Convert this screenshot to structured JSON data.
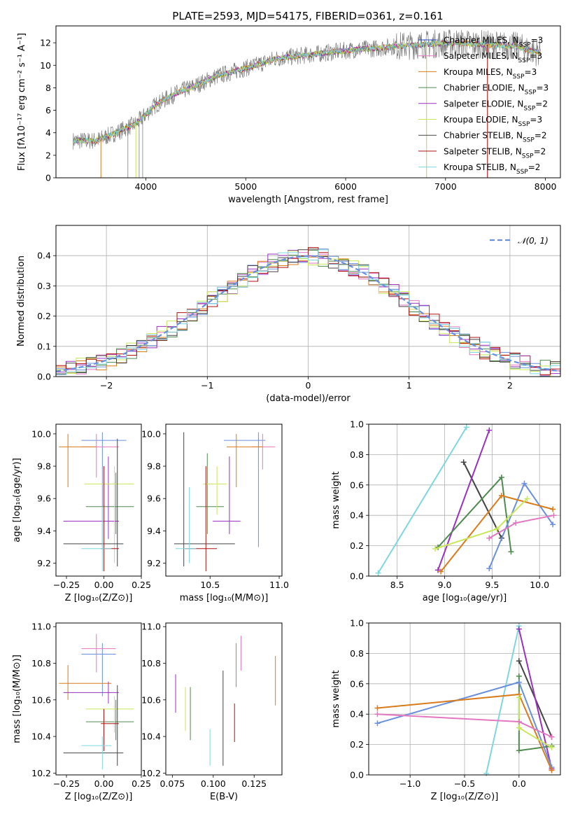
{
  "title": "PLATE=2593, MJD=54175, FIBERID=0361, z=0.161",
  "colors": {
    "Chabrier MILES": "#1f3fbf",
    "Salpeter MILES": "#e377c2",
    "Kroupa MILES": "#d97b1a",
    "Chabrier ELODIE": "#4f8a4f",
    "Salpeter ELODIE": "#9b30c0",
    "Kroupa ELODIE": "#c8e85a",
    "Chabrier STELIB": "#444444",
    "Salpeter STELIB": "#b01010",
    "Kroupa STELIB": "#7fd6e0",
    "blue_models": "#6a8fdc",
    "data_gray": "#808080",
    "grid": "#b0b0b0"
  },
  "chart_data": [
    {
      "id": "spectrum",
      "type": "line",
      "xlabel": "wavelength [Angstrom, rest frame]",
      "ylabel": "Flux [fλ10⁻¹⁷ erg cm⁻² s⁻¹ A⁻¹]",
      "xlim": [
        3100,
        8150
      ],
      "ylim": [
        0,
        13.5
      ],
      "xticks": [
        4000,
        5000,
        6000,
        7000,
        8000
      ],
      "yticks": [
        0,
        2,
        4,
        6,
        8,
        10,
        12
      ],
      "grid": false,
      "legend_position": "upper right",
      "legend": [
        {
          "label": "Chabrier MILES, N",
          "sub": "SSP",
          "suffix": "=3",
          "color": "Chabrier MILES"
        },
        {
          "label": "Salpeter MILES, N",
          "sub": "SSP",
          "suffix": "=3",
          "color": "Salpeter MILES"
        },
        {
          "label": "Kroupa MILES, N",
          "sub": "SSP",
          "suffix": "=3",
          "color": "Kroupa MILES"
        },
        {
          "label": "Chabrier ELODIE, N",
          "sub": "SSP",
          "suffix": "=3",
          "color": "Chabrier ELODIE"
        },
        {
          "label": "Salpeter ELODIE, N",
          "sub": "SSP",
          "suffix": "=2",
          "color": "Salpeter ELODIE"
        },
        {
          "label": "Kroupa ELODIE, N",
          "sub": "SSP",
          "suffix": "=3",
          "color": "Kroupa ELODIE"
        },
        {
          "label": "Chabrier STELIB, N",
          "sub": "SSP",
          "suffix": "=2",
          "color": "Chabrier STELIB"
        },
        {
          "label": "Salpeter STELIB, N",
          "sub": "SSP",
          "suffix": "=2",
          "color": "Salpeter STELIB"
        },
        {
          "label": "Kroupa STELIB, N",
          "sub": "SSP",
          "suffix": "=2",
          "color": "Kroupa STELIB"
        }
      ],
      "continuum": {
        "x": [
          3300,
          3500,
          3700,
          3900,
          4100,
          4300,
          4500,
          4700,
          4900,
          5100,
          5300,
          5500,
          5700,
          5900,
          6100,
          6300,
          6500,
          6700,
          6900,
          7100,
          7300,
          7500,
          7700,
          7900
        ],
        "y": [
          3.3,
          3.3,
          4.0,
          4.8,
          6.5,
          7.5,
          8.2,
          9.0,
          9.5,
          10.0,
          10.6,
          10.8,
          11.0,
          11.2,
          11.4,
          11.5,
          11.7,
          11.8,
          11.9,
          12.0,
          11.9,
          11.8,
          11.7,
          11.2
        ]
      }
    },
    {
      "id": "residuals",
      "type": "histogram",
      "xlabel": "(data-model)/error",
      "ylabel": "Normed distribution",
      "xlim": [
        -2.5,
        2.5
      ],
      "ylim": [
        0,
        0.5
      ],
      "xticks": [
        -2,
        -1,
        0,
        1,
        2
      ],
      "xtick_labels": [
        "−2",
        "−1",
        "0",
        "1",
        "2"
      ],
      "yticks": [
        0.0,
        0.1,
        0.2,
        0.3,
        0.4
      ],
      "grid": true,
      "legend_position": "upper right",
      "legend": [
        {
          "label": "𝒩(0, 1)",
          "color": "blue_models",
          "style": "dashed"
        }
      ],
      "bin_width": 0.1,
      "model": "gaussian mean 0 sigma 1"
    },
    {
      "id": "age_vs_Z",
      "type": "errorbar",
      "xlabel": "Z [log₁₀(Z/Z⊙)]",
      "ylabel": "age  [log₁₀(age/yr)]",
      "xlim": [
        -0.32,
        0.25
      ],
      "ylim": [
        9.12,
        10.06
      ],
      "xticks": [
        -0.25,
        0.0,
        0.25
      ],
      "xtick_labels": [
        "−0.25",
        "0.00",
        "0.25"
      ],
      "yticks": [
        9.2,
        9.4,
        9.6,
        9.8,
        10.0
      ],
      "yticklabels": [
        "9.2",
        "9.4",
        "9.6",
        "9.8",
        "10.0"
      ],
      "points": [
        {
          "c": "blue_models",
          "x": -0.01,
          "xlo": -0.15,
          "xhi": 0.15,
          "y": 9.96,
          "ylo": 9.3,
          "yhi": 10.01
        },
        {
          "c": "Salpeter MILES",
          "x": -0.05,
          "xlo": -0.15,
          "xhi": 0.1,
          "y": 9.92,
          "ylo": 9.73,
          "yhi": 10.0
        },
        {
          "c": "Kroupa MILES",
          "x": -0.24,
          "xlo": -0.3,
          "xhi": -0.05,
          "y": 9.92,
          "ylo": 9.67,
          "yhi": 10.0
        },
        {
          "c": "Chabrier ELODIE",
          "x": 0.08,
          "xlo": -0.12,
          "xhi": 0.2,
          "y": 9.55,
          "ylo": 9.38,
          "yhi": 9.76
        },
        {
          "c": "Salpeter ELODIE",
          "x": 0.03,
          "xlo": -0.27,
          "xhi": 0.1,
          "y": 9.46,
          "ylo": 9.35,
          "yhi": 9.86
        },
        {
          "c": "Kroupa ELODIE",
          "x": 0.07,
          "xlo": -0.13,
          "xhi": 0.2,
          "y": 9.69,
          "ylo": 9.2,
          "yhi": 9.8
        },
        {
          "c": "Chabrier STELIB",
          "x": 0.09,
          "xlo": -0.27,
          "xhi": 0.13,
          "y": 9.32,
          "ylo": 9.18,
          "yhi": 9.97
        },
        {
          "c": "Salpeter STELIB",
          "x": 0.0,
          "xlo": -0.02,
          "xhi": 0.1,
          "y": 9.29,
          "ylo": 9.15,
          "yhi": 9.8
        },
        {
          "c": "Kroupa STELIB",
          "x": -0.01,
          "xlo": -0.15,
          "xhi": 0.05,
          "y": 9.29,
          "ylo": 9.15,
          "yhi": 9.55
        }
      ]
    },
    {
      "id": "age_vs_mass",
      "type": "errorbar",
      "xlabel": "mass [log₁₀(M/M⊙)]",
      "ylabel": "",
      "xlim": [
        10.18,
        11.02
      ],
      "ylim": [
        9.12,
        10.06
      ],
      "xticks": [
        10.5,
        11.0
      ],
      "xtick_labels": [
        "10.5",
        "11.0"
      ],
      "yticks": [
        9.2,
        9.4,
        9.6,
        9.8,
        10.0
      ],
      "yticklabels": [
        "9.2",
        "9.4",
        "9.6",
        "9.8",
        "10.0"
      ],
      "points": [
        {
          "c": "blue_models",
          "x": 10.85,
          "xlo": 10.6,
          "xhi": 10.9,
          "y": 9.96,
          "ylo": 9.3,
          "yhi": 10.01
        },
        {
          "c": "Salpeter MILES",
          "x": 10.88,
          "xlo": 10.8,
          "xhi": 10.97,
          "y": 9.92,
          "ylo": 9.78,
          "yhi": 10.0
        },
        {
          "c": "Kroupa MILES",
          "x": 10.69,
          "xlo": 10.62,
          "xhi": 10.88,
          "y": 9.92,
          "ylo": 9.67,
          "yhi": 10.0
        },
        {
          "c": "Chabrier ELODIE",
          "x": 10.48,
          "xlo": 10.4,
          "xhi": 10.6,
          "y": 9.55,
          "ylo": 9.38,
          "yhi": 9.88
        },
        {
          "c": "Salpeter ELODIE",
          "x": 10.64,
          "xlo": 10.52,
          "xhi": 10.72,
          "y": 9.46,
          "ylo": 9.38,
          "yhi": 9.86
        },
        {
          "c": "Kroupa ELODIE",
          "x": 10.55,
          "xlo": 10.45,
          "xhi": 10.62,
          "y": 9.69,
          "ylo": 9.5,
          "yhi": 9.8
        },
        {
          "c": "Chabrier STELIB",
          "x": 10.31,
          "xlo": 10.24,
          "xhi": 10.68,
          "y": 9.32,
          "ylo": 9.18,
          "yhi": 10.01
        },
        {
          "c": "Salpeter STELIB",
          "x": 10.47,
          "xlo": 10.32,
          "xhi": 10.55,
          "y": 9.29,
          "ylo": 9.15,
          "yhi": 9.8
        },
        {
          "c": "Kroupa STELIB",
          "x": 10.35,
          "xlo": 10.25,
          "xhi": 10.4,
          "y": 9.29,
          "ylo": 9.2,
          "yhi": 9.67
        }
      ]
    },
    {
      "id": "weight_vs_age",
      "type": "line",
      "xlabel": "age  [log₁₀(age/yr)]",
      "ylabel": "mass weight",
      "xlim": [
        8.2,
        10.22
      ],
      "ylim": [
        0,
        1
      ],
      "xticks": [
        8.5,
        9.0,
        9.5,
        10.0
      ],
      "xtick_labels": [
        "8.5",
        "9.0",
        "9.5",
        "10.0"
      ],
      "yticks": [
        0.0,
        0.2,
        0.4,
        0.6,
        0.8,
        1.0
      ],
      "grid": true,
      "series": [
        {
          "c": "Kroupa STELIB",
          "x": [
            8.3,
            9.23
          ],
          "y": [
            0.02,
            0.98
          ]
        },
        {
          "c": "Chabrier STELIB",
          "x": [
            9.2,
            9.6
          ],
          "y": [
            0.75,
            0.25
          ]
        },
        {
          "c": "Salpeter ELODIE",
          "x": [
            8.93,
            9.47
          ],
          "y": [
            0.04,
            0.96
          ]
        },
        {
          "c": "Chabrier ELODIE",
          "x": [
            8.93,
            9.6,
            9.7
          ],
          "y": [
            0.19,
            0.65,
            0.16
          ]
        },
        {
          "c": "blue_models",
          "x": [
            9.47,
            9.84,
            10.14
          ],
          "y": [
            0.05,
            0.61,
            0.34
          ]
        },
        {
          "c": "Kroupa MILES",
          "x": [
            8.96,
            9.6,
            10.14
          ],
          "y": [
            0.03,
            0.53,
            0.44
          ]
        },
        {
          "c": "Kroupa ELODIE",
          "x": [
            8.9,
            9.55,
            9.87
          ],
          "y": [
            0.18,
            0.31,
            0.51
          ]
        },
        {
          "c": "Salpeter MILES",
          "x": [
            9.47,
            9.75,
            10.15
          ],
          "y": [
            0.25,
            0.35,
            0.4
          ]
        }
      ]
    },
    {
      "id": "mass_vs_Z",
      "type": "errorbar",
      "xlabel": "Z [log₁₀(Z/Z⊙)]",
      "ylabel": "mass [log₁₀(M/M⊙)]",
      "xlim": [
        -0.32,
        0.25
      ],
      "ylim": [
        10.19,
        11.02
      ],
      "xticks": [
        -0.25,
        0.0,
        0.25
      ],
      "xtick_labels": [
        "−0.25",
        "0.00",
        "0.25"
      ],
      "yticks": [
        10.2,
        10.4,
        10.6,
        10.8,
        11.0
      ],
      "yticklabels": [
        "10.2",
        "10.4",
        "10.6",
        "10.8",
        "11.0"
      ],
      "points": [
        {
          "c": "blue_models",
          "x": -0.01,
          "xlo": -0.15,
          "xhi": 0.08,
          "y": 10.85,
          "ylo": 10.62,
          "yhi": 10.91
        },
        {
          "c": "Salpeter MILES",
          "x": -0.05,
          "xlo": -0.15,
          "xhi": 0.08,
          "y": 10.88,
          "ylo": 10.75,
          "yhi": 10.96
        },
        {
          "c": "Kroupa MILES",
          "x": -0.24,
          "xlo": -0.3,
          "xhi": 0.05,
          "y": 10.69,
          "ylo": 10.6,
          "yhi": 10.79
        },
        {
          "c": "Chabrier ELODIE",
          "x": 0.08,
          "xlo": -0.12,
          "xhi": 0.2,
          "y": 10.48,
          "ylo": 10.38,
          "yhi": 10.6
        },
        {
          "c": "Salpeter ELODIE",
          "x": 0.03,
          "xlo": -0.27,
          "xhi": 0.1,
          "y": 10.64,
          "ylo": 10.58,
          "yhi": 10.7
        },
        {
          "c": "Kroupa ELODIE",
          "x": 0.07,
          "xlo": -0.12,
          "xhi": 0.2,
          "y": 10.55,
          "ylo": 10.42,
          "yhi": 10.62
        },
        {
          "c": "Chabrier STELIB",
          "x": 0.09,
          "xlo": -0.27,
          "xhi": 0.13,
          "y": 10.31,
          "ylo": 10.24,
          "yhi": 10.68
        },
        {
          "c": "Salpeter STELIB",
          "x": 0.0,
          "xlo": -0.02,
          "xhi": 0.1,
          "y": 10.47,
          "ylo": 10.32,
          "yhi": 10.55
        },
        {
          "c": "Kroupa STELIB",
          "x": -0.01,
          "xlo": -0.15,
          "xhi": 0.05,
          "y": 10.35,
          "ylo": 10.22,
          "yhi": 10.4
        }
      ]
    },
    {
      "id": "mass_vs_ebv",
      "type": "errorbar",
      "xlabel": "E(B-V)",
      "ylabel": "",
      "xlim": [
        0.071,
        0.142
      ],
      "ylim": [
        10.19,
        11.02
      ],
      "xticks": [
        0.075,
        0.1,
        0.125
      ],
      "xtick_labels": [
        "0.075",
        "0.100",
        "0.125"
      ],
      "yticks": [
        10.2,
        10.4,
        10.6,
        10.8,
        11.0
      ],
      "yticklabels": [
        "10.2",
        "10.4",
        "10.6",
        "10.8",
        "11.0"
      ],
      "points": [
        {
          "c": "Salpeter ELODIE",
          "x": 0.077,
          "y": 10.64,
          "ylo": 10.53,
          "yhi": 10.74
        },
        {
          "c": "Kroupa ELODIE",
          "x": 0.083,
          "y": 10.55,
          "ylo": 10.43,
          "yhi": 10.67
        },
        {
          "c": "Chabrier ELODIE",
          "x": 0.086,
          "y": 10.52,
          "ylo": 10.38,
          "yhi": 10.67
        },
        {
          "c": "Kroupa STELIB",
          "x": 0.098,
          "y": 10.33,
          "ylo": 10.24,
          "yhi": 10.44
        },
        {
          "c": "Chabrier STELIB",
          "x": 0.106,
          "y": 10.5,
          "ylo": 10.24,
          "yhi": 10.76
        },
        {
          "c": "Salpeter STELIB",
          "x": 0.113,
          "y": 10.47,
          "ylo": 10.37,
          "yhi": 10.58
        },
        {
          "c": "blue_models",
          "x": 0.114,
          "y": 10.83,
          "ylo": 10.67,
          "yhi": 10.91
        },
        {
          "c": "Salpeter MILES",
          "x": 0.117,
          "y": 10.86,
          "ylo": 10.76,
          "yhi": 10.95
        },
        {
          "c": "Kroupa MILES",
          "x": 0.138,
          "y": 10.69,
          "ylo": 10.57,
          "yhi": 10.84
        }
      ]
    },
    {
      "id": "weight_vs_Z",
      "type": "line",
      "xlabel": "Z [log₁₀(Z/Z⊙)]",
      "ylabel": "mass weight",
      "xlim": [
        -1.38,
        0.38
      ],
      "ylim": [
        0,
        1
      ],
      "xticks": [
        -1.0,
        -0.5,
        0.0
      ],
      "xtick_labels": [
        "−1.0",
        "−0.5",
        "0.0"
      ],
      "yticks": [
        0.0,
        0.2,
        0.4,
        0.6,
        0.8,
        1.0
      ],
      "grid": true,
      "series": [
        {
          "c": "Kroupa STELIB",
          "x": [
            -0.3,
            0.0
          ],
          "y": [
            0.01,
            0.98
          ]
        },
        {
          "c": "Chabrier STELIB",
          "x": [
            0.0,
            0.3
          ],
          "y": [
            0.75,
            0.25
          ]
        },
        {
          "c": "Salpeter ELODIE",
          "x": [
            0.0,
            0.3
          ],
          "y": [
            0.96,
            0.04
          ]
        },
        {
          "c": "Chabrier ELODIE",
          "x": [
            0.0,
            0.0,
            0.3
          ],
          "y": [
            0.65,
            0.16,
            0.19
          ]
        },
        {
          "c": "blue_models",
          "x": [
            -1.3,
            0.0,
            0.3
          ],
          "y": [
            0.34,
            0.61,
            0.05
          ]
        },
        {
          "c": "Kroupa MILES",
          "x": [
            -1.3,
            0.0,
            0.3
          ],
          "y": [
            0.44,
            0.53,
            0.03
          ]
        },
        {
          "c": "Kroupa ELODIE",
          "x": [
            0.0,
            0.0,
            0.3
          ],
          "y": [
            0.51,
            0.31,
            0.18
          ]
        },
        {
          "c": "Salpeter MILES",
          "x": [
            -1.3,
            0.0,
            0.3
          ],
          "y": [
            0.4,
            0.35,
            0.25
          ]
        }
      ]
    }
  ]
}
